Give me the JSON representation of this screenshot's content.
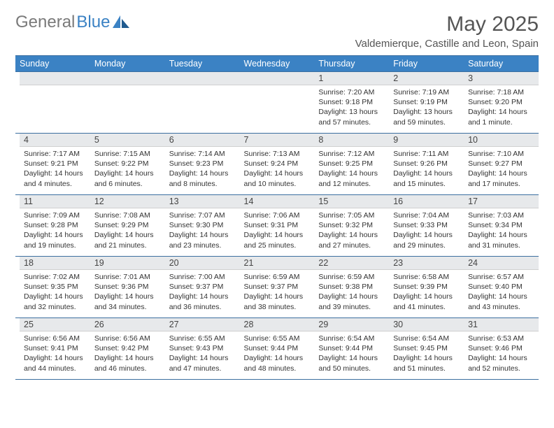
{
  "logo": {
    "text1": "General",
    "text2": "Blue"
  },
  "title": "May 2025",
  "location": "Valdemierque, Castille and Leon, Spain",
  "day_headers": [
    "Sunday",
    "Monday",
    "Tuesday",
    "Wednesday",
    "Thursday",
    "Friday",
    "Saturday"
  ],
  "colors": {
    "header_bg": "#3b82c4",
    "header_fg": "#ffffff",
    "daynum_bg": "#e7e9eb",
    "border": "#3b6fa0",
    "logo_gray": "#7a7a7a",
    "logo_blue": "#3b82c4"
  },
  "weeks": [
    [
      null,
      null,
      null,
      null,
      {
        "n": "1",
        "sr": "7:20 AM",
        "ss": "9:18 PM",
        "dl": "13 hours and 57 minutes."
      },
      {
        "n": "2",
        "sr": "7:19 AM",
        "ss": "9:19 PM",
        "dl": "13 hours and 59 minutes."
      },
      {
        "n": "3",
        "sr": "7:18 AM",
        "ss": "9:20 PM",
        "dl": "14 hours and 1 minute."
      }
    ],
    [
      {
        "n": "4",
        "sr": "7:17 AM",
        "ss": "9:21 PM",
        "dl": "14 hours and 4 minutes."
      },
      {
        "n": "5",
        "sr": "7:15 AM",
        "ss": "9:22 PM",
        "dl": "14 hours and 6 minutes."
      },
      {
        "n": "6",
        "sr": "7:14 AM",
        "ss": "9:23 PM",
        "dl": "14 hours and 8 minutes."
      },
      {
        "n": "7",
        "sr": "7:13 AM",
        "ss": "9:24 PM",
        "dl": "14 hours and 10 minutes."
      },
      {
        "n": "8",
        "sr": "7:12 AM",
        "ss": "9:25 PM",
        "dl": "14 hours and 12 minutes."
      },
      {
        "n": "9",
        "sr": "7:11 AM",
        "ss": "9:26 PM",
        "dl": "14 hours and 15 minutes."
      },
      {
        "n": "10",
        "sr": "7:10 AM",
        "ss": "9:27 PM",
        "dl": "14 hours and 17 minutes."
      }
    ],
    [
      {
        "n": "11",
        "sr": "7:09 AM",
        "ss": "9:28 PM",
        "dl": "14 hours and 19 minutes."
      },
      {
        "n": "12",
        "sr": "7:08 AM",
        "ss": "9:29 PM",
        "dl": "14 hours and 21 minutes."
      },
      {
        "n": "13",
        "sr": "7:07 AM",
        "ss": "9:30 PM",
        "dl": "14 hours and 23 minutes."
      },
      {
        "n": "14",
        "sr": "7:06 AM",
        "ss": "9:31 PM",
        "dl": "14 hours and 25 minutes."
      },
      {
        "n": "15",
        "sr": "7:05 AM",
        "ss": "9:32 PM",
        "dl": "14 hours and 27 minutes."
      },
      {
        "n": "16",
        "sr": "7:04 AM",
        "ss": "9:33 PM",
        "dl": "14 hours and 29 minutes."
      },
      {
        "n": "17",
        "sr": "7:03 AM",
        "ss": "9:34 PM",
        "dl": "14 hours and 31 minutes."
      }
    ],
    [
      {
        "n": "18",
        "sr": "7:02 AM",
        "ss": "9:35 PM",
        "dl": "14 hours and 32 minutes."
      },
      {
        "n": "19",
        "sr": "7:01 AM",
        "ss": "9:36 PM",
        "dl": "14 hours and 34 minutes."
      },
      {
        "n": "20",
        "sr": "7:00 AM",
        "ss": "9:37 PM",
        "dl": "14 hours and 36 minutes."
      },
      {
        "n": "21",
        "sr": "6:59 AM",
        "ss": "9:37 PM",
        "dl": "14 hours and 38 minutes."
      },
      {
        "n": "22",
        "sr": "6:59 AM",
        "ss": "9:38 PM",
        "dl": "14 hours and 39 minutes."
      },
      {
        "n": "23",
        "sr": "6:58 AM",
        "ss": "9:39 PM",
        "dl": "14 hours and 41 minutes."
      },
      {
        "n": "24",
        "sr": "6:57 AM",
        "ss": "9:40 PM",
        "dl": "14 hours and 43 minutes."
      }
    ],
    [
      {
        "n": "25",
        "sr": "6:56 AM",
        "ss": "9:41 PM",
        "dl": "14 hours and 44 minutes."
      },
      {
        "n": "26",
        "sr": "6:56 AM",
        "ss": "9:42 PM",
        "dl": "14 hours and 46 minutes."
      },
      {
        "n": "27",
        "sr": "6:55 AM",
        "ss": "9:43 PM",
        "dl": "14 hours and 47 minutes."
      },
      {
        "n": "28",
        "sr": "6:55 AM",
        "ss": "9:44 PM",
        "dl": "14 hours and 48 minutes."
      },
      {
        "n": "29",
        "sr": "6:54 AM",
        "ss": "9:44 PM",
        "dl": "14 hours and 50 minutes."
      },
      {
        "n": "30",
        "sr": "6:54 AM",
        "ss": "9:45 PM",
        "dl": "14 hours and 51 minutes."
      },
      {
        "n": "31",
        "sr": "6:53 AM",
        "ss": "9:46 PM",
        "dl": "14 hours and 52 minutes."
      }
    ]
  ],
  "labels": {
    "sunrise": "Sunrise:",
    "sunset": "Sunset:",
    "daylight": "Daylight:"
  }
}
